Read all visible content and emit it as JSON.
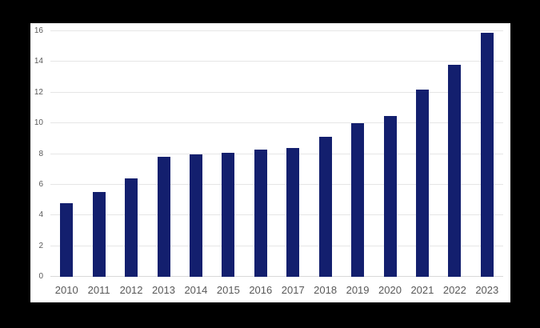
{
  "canvas": {
    "frame_background": "#000000",
    "surface_background": "#ffffff"
  },
  "chart_data": {
    "type": "bar",
    "title": "",
    "xlabel": "",
    "ylabel": "",
    "categories": [
      "2010",
      "2011",
      "2012",
      "2013",
      "2014",
      "2015",
      "2016",
      "2017",
      "2018",
      "2019",
      "2020",
      "2021",
      "2022",
      "2023"
    ],
    "values": [
      4.8,
      5.5,
      6.4,
      7.8,
      8.0,
      8.1,
      8.3,
      8.4,
      9.1,
      10.0,
      10.5,
      12.2,
      13.8,
      15.9
    ],
    "ylim": [
      0,
      16
    ],
    "yticks": [
      0,
      2,
      4,
      6,
      8,
      10,
      12,
      14,
      16
    ],
    "grid": true,
    "legend": "none",
    "bar_color": "#131F6E",
    "gridline_color": "#E6E6E6",
    "baseline_color": "#D9D9D9",
    "tick_label_color": "#595959"
  }
}
